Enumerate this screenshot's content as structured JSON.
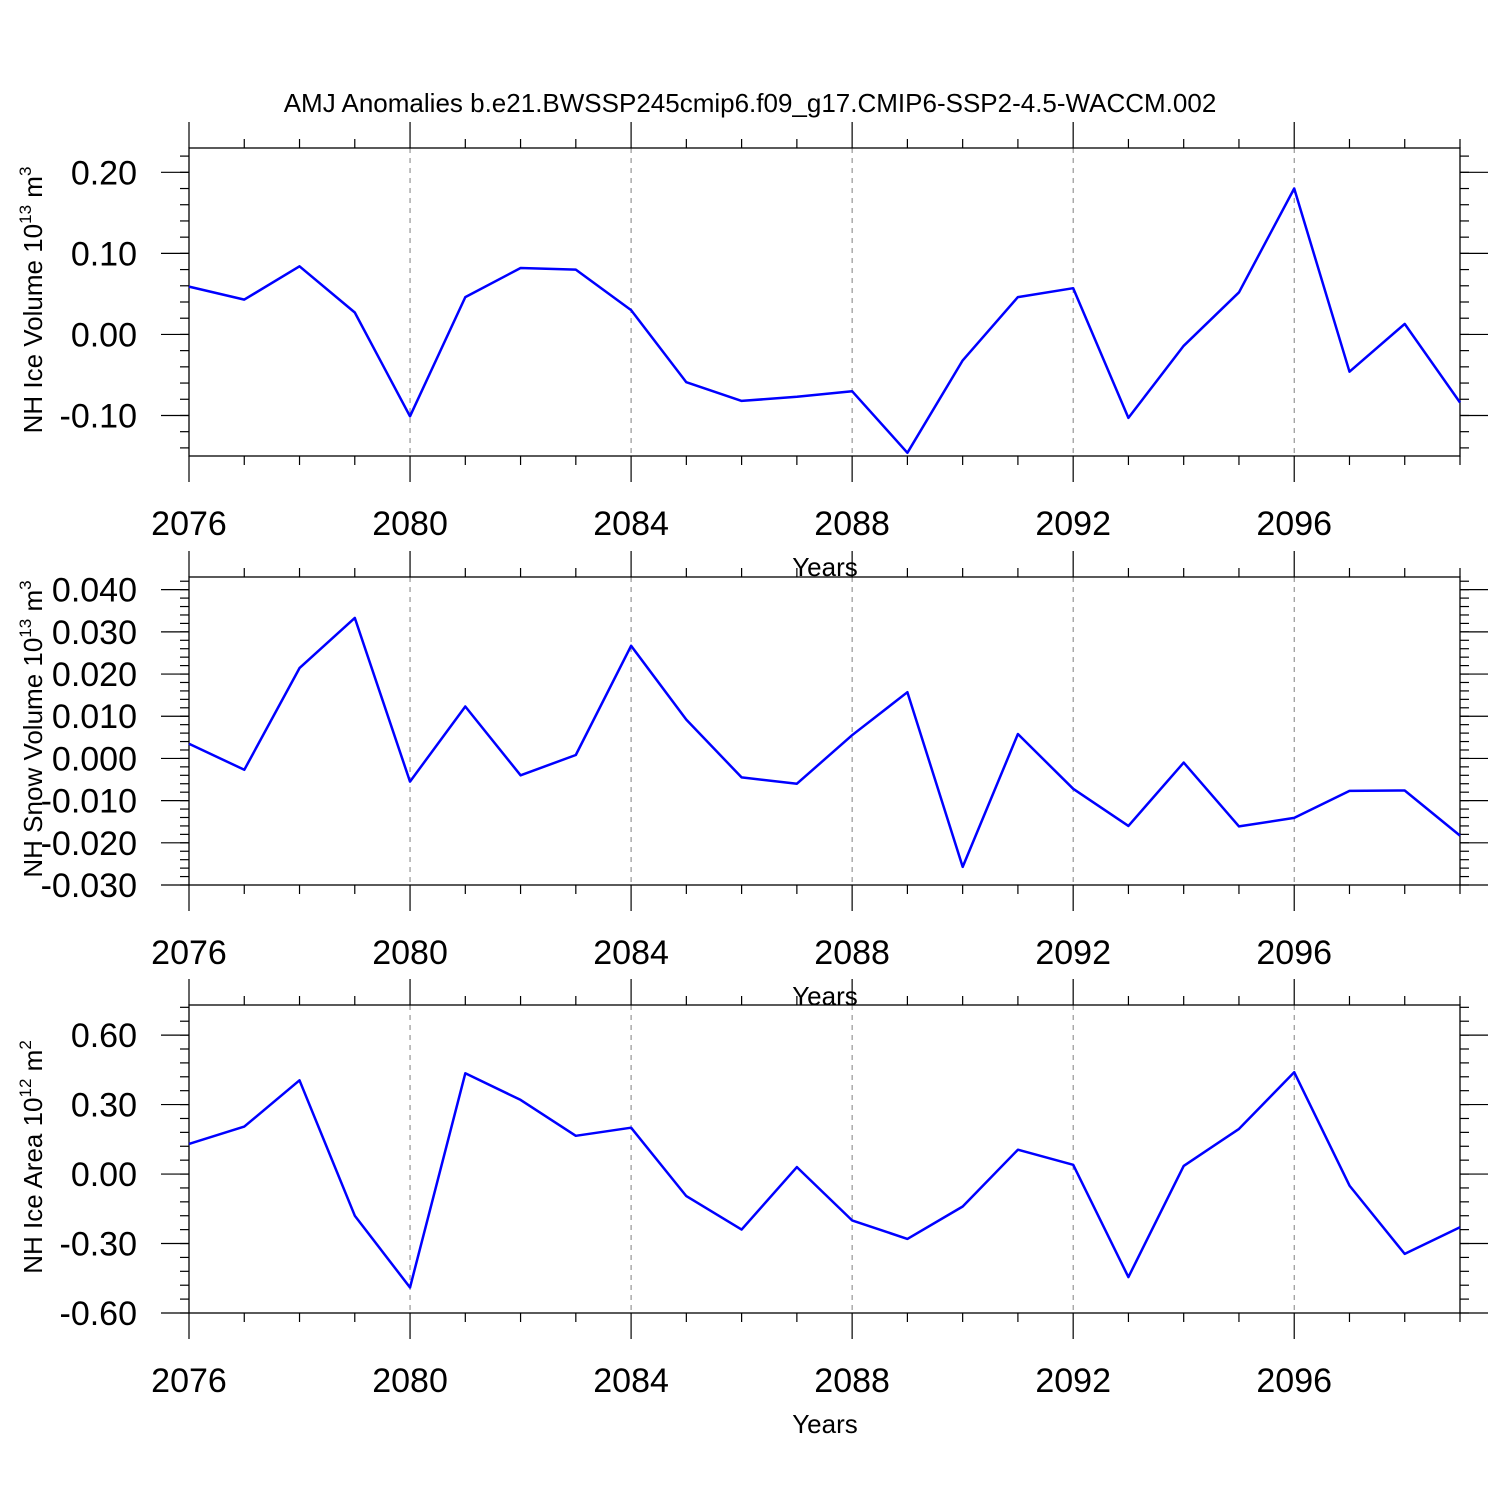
{
  "title": "AMJ Anomalies b.e21.BWSSP245cmip6.f09_g17.CMIP6-SSP2-4.5-WACCM.002",
  "colors": {
    "series": "#0000ff",
    "grid": "#808080",
    "axis": "#000000"
  },
  "chart_data": [
    {
      "type": "line",
      "name": "NH Ice Volume",
      "ylabel": "NH Ice Volume",
      "ylabel_scale": "10",
      "ylabel_exp": "13",
      "ylabel_unit": "m",
      "ylabel_unit_exp": "3",
      "xlabel": "Years",
      "xlim": [
        2076,
        2099
      ],
      "ylim": [
        -0.15,
        0.23
      ],
      "xticks": [
        2076,
        2080,
        2084,
        2088,
        2092,
        2096
      ],
      "xtick_labels": [
        "2076",
        "2080",
        "2084",
        "2088",
        "2092",
        "2096"
      ],
      "yticks": [
        0.2,
        0.1,
        0.0,
        -0.1
      ],
      "ytick_labels": [
        "0.20",
        "0.10",
        "0.00",
        "-0.10"
      ],
      "y_minor_step": 0.02,
      "grid": "vertical-dashed",
      "x": [
        2076,
        2077,
        2078,
        2079,
        2080,
        2081,
        2082,
        2083,
        2084,
        2085,
        2086,
        2087,
        2088,
        2089,
        2090,
        2091,
        2092,
        2093,
        2094,
        2095,
        2096,
        2097,
        2098,
        2099
      ],
      "values": [
        0.059,
        0.043,
        0.084,
        0.027,
        -0.101,
        0.046,
        0.082,
        0.08,
        0.03,
        -0.059,
        -0.082,
        -0.077,
        -0.07,
        -0.146,
        -0.032,
        0.046,
        0.057,
        -0.103,
        -0.014,
        0.052,
        0.18,
        -0.046,
        0.013,
        -0.084
      ]
    },
    {
      "type": "line",
      "name": "NH Snow Volume",
      "ylabel": "NH Snow Volume",
      "ylabel_scale": "10",
      "ylabel_exp": "13",
      "ylabel_unit": "m",
      "ylabel_unit_exp": "3",
      "xlabel": "Years",
      "xlim": [
        2076,
        2099
      ],
      "ylim": [
        -0.03,
        0.043
      ],
      "xticks": [
        2076,
        2080,
        2084,
        2088,
        2092,
        2096
      ],
      "xtick_labels": [
        "2076",
        "2080",
        "2084",
        "2088",
        "2092",
        "2096"
      ],
      "yticks": [
        0.04,
        0.03,
        0.02,
        0.01,
        0.0,
        -0.01,
        -0.02,
        -0.03
      ],
      "ytick_labels": [
        "0.040",
        "0.030",
        "0.020",
        "0.010",
        "0.000",
        "-0.010",
        "-0.020",
        "-0.030"
      ],
      "y_minor_step": 0.002,
      "grid": "vertical-dashed",
      "x": [
        2076,
        2077,
        2078,
        2079,
        2080,
        2081,
        2082,
        2083,
        2084,
        2085,
        2086,
        2087,
        2088,
        2089,
        2090,
        2091,
        2092,
        2093,
        2094,
        2095,
        2096,
        2097,
        2098,
        2099
      ],
      "values": [
        0.0035,
        -0.0027,
        0.0214,
        0.0333,
        -0.0055,
        0.0123,
        -0.004,
        0.0008,
        0.0267,
        0.0092,
        -0.0045,
        -0.006,
        0.0055,
        0.0157,
        -0.0257,
        0.0058,
        -0.0072,
        -0.016,
        -0.001,
        -0.0161,
        -0.0141,
        -0.0077,
        -0.0076,
        -0.0183
      ]
    },
    {
      "type": "line",
      "name": "NH Ice Area",
      "ylabel": "NH Ice Area",
      "ylabel_scale": "10",
      "ylabel_exp": "12",
      "ylabel_unit": "m",
      "ylabel_unit_exp": "2",
      "xlabel": "Years",
      "xlim": [
        2076,
        2099
      ],
      "ylim": [
        -0.6,
        0.73
      ],
      "xticks": [
        2076,
        2080,
        2084,
        2088,
        2092,
        2096
      ],
      "xtick_labels": [
        "2076",
        "2080",
        "2084",
        "2088",
        "2092",
        "2096"
      ],
      "yticks": [
        0.6,
        0.3,
        0.0,
        -0.3,
        -0.6
      ],
      "ytick_labels": [
        "0.60",
        "0.30",
        "0.00",
        "-0.30",
        "-0.60"
      ],
      "y_minor_step": 0.06,
      "grid": "vertical-dashed",
      "x": [
        2076,
        2077,
        2078,
        2079,
        2080,
        2081,
        2082,
        2083,
        2084,
        2085,
        2086,
        2087,
        2088,
        2089,
        2090,
        2091,
        2092,
        2093,
        2094,
        2095,
        2096,
        2097,
        2098,
        2099
      ],
      "values": [
        0.13,
        0.205,
        0.405,
        -0.18,
        -0.49,
        0.435,
        0.32,
        0.165,
        0.2,
        -0.095,
        -0.24,
        0.03,
        -0.2,
        -0.28,
        -0.14,
        0.105,
        0.04,
        -0.445,
        0.035,
        0.195,
        0.44,
        -0.05,
        -0.345,
        -0.23
      ]
    }
  ]
}
